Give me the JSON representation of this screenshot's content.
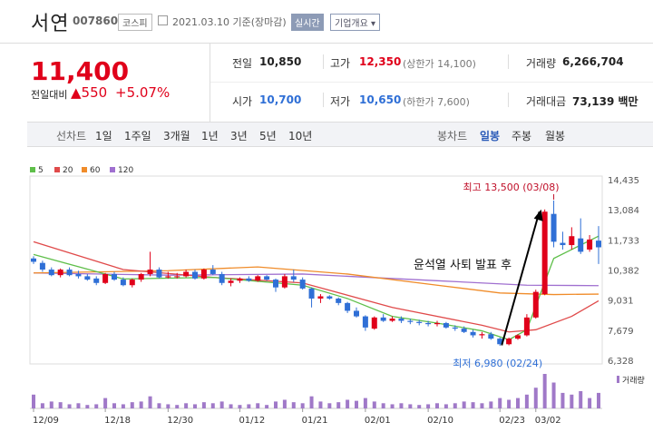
{
  "header": {
    "name": "서연",
    "code": "007860",
    "market": "코스피",
    "date_text": "2021.03.10 기준(장마감)",
    "realtime_label": "실시간",
    "corp_label": "기업개요 ▾"
  },
  "quote": {
    "price": "11,400",
    "change_label": "전일대비",
    "change": "▲550",
    "change_pct": "+5.07%"
  },
  "stats": {
    "prev_label": "전일",
    "prev": "10,850",
    "high_label": "고가",
    "high": "12,350",
    "high_limit": "(상한가 14,100)",
    "volume_label": "거래량",
    "volume": "6,266,704",
    "open_label": "시가",
    "open": "10,700",
    "low_label": "저가",
    "low": "10,650",
    "low_limit": "(하한가 7,600)",
    "amount_label": "거래대금",
    "amount": "73,139 백만"
  },
  "tabs": {
    "line_label": "선차트",
    "periods": [
      "1일",
      "1주일",
      "3개월",
      "1년",
      "3년",
      "5년",
      "10년"
    ],
    "candle_label": "봉차트",
    "candle_periods": [
      "일봉",
      "주봉",
      "월봉"
    ],
    "selected": "일봉"
  },
  "colors": {
    "up": "#e0001a",
    "down": "#2f6fd6",
    "ma5": "#5fbf4a",
    "ma20": "#e04a4a",
    "ma60": "#f08c2a",
    "ma120": "#a070d0"
  },
  "chart_data": {
    "type": "candlestick",
    "legend": [
      {
        "name": "5",
        "color": "#5fbf4a"
      },
      {
        "name": "20",
        "color": "#e04a4a"
      },
      {
        "name": "60",
        "color": "#f08c2a"
      },
      {
        "name": "120",
        "color": "#a070d0"
      }
    ],
    "y_ticks": [
      "14,435",
      "13,084",
      "11,733",
      "10,382",
      "9,031",
      "7,679",
      "6,328"
    ],
    "y_range": [
      6328,
      14435
    ],
    "x_labels": [
      "12/09",
      "12/18",
      "12/30",
      "01/12",
      "01/21",
      "02/01",
      "02/10",
      "02/23",
      "03/02"
    ],
    "x_label_index": [
      0,
      8,
      15,
      23,
      30,
      37,
      44,
      52,
      56
    ],
    "ohlc": [
      [
        10900,
        11000,
        10650,
        10750
      ],
      [
        10700,
        10800,
        10300,
        10400
      ],
      [
        10400,
        10500,
        10100,
        10150
      ],
      [
        10150,
        10450,
        10050,
        10400
      ],
      [
        10400,
        10500,
        10100,
        10150
      ],
      [
        10200,
        10350,
        10000,
        10100
      ],
      [
        10100,
        10200,
        9900,
        9950
      ],
      [
        10000,
        10100,
        9700,
        9800
      ],
      [
        9800,
        10250,
        9750,
        10200
      ],
      [
        10200,
        10300,
        9900,
        9950
      ],
      [
        9950,
        10050,
        9650,
        9700
      ],
      [
        9700,
        10000,
        9600,
        9950
      ],
      [
        9950,
        10250,
        9850,
        10200
      ],
      [
        10200,
        11200,
        10100,
        10400
      ],
      [
        10400,
        10500,
        10000,
        10050
      ],
      [
        10050,
        10300,
        10000,
        10100
      ],
      [
        10100,
        10250,
        10000,
        10100
      ],
      [
        10100,
        10400,
        10050,
        10300
      ],
      [
        10300,
        10400,
        9950,
        10000
      ],
      [
        10000,
        10450,
        9950,
        10400
      ],
      [
        10400,
        10600,
        10150,
        10200
      ],
      [
        10200,
        10300,
        9700,
        9800
      ],
      [
        9800,
        10000,
        9650,
        9900
      ],
      [
        9900,
        10050,
        9800,
        10000
      ],
      [
        10000,
        10100,
        9850,
        9900
      ],
      [
        9900,
        10150,
        9850,
        10100
      ],
      [
        10100,
        10150,
        9900,
        9950
      ],
      [
        9950,
        10000,
        9400,
        9600
      ],
      [
        9600,
        10200,
        9550,
        10100
      ],
      [
        10100,
        10400,
        9850,
        9950
      ],
      [
        9950,
        10050,
        9500,
        9550
      ],
      [
        9550,
        9600,
        8700,
        9100
      ],
      [
        9100,
        9300,
        8900,
        9200
      ],
      [
        9200,
        9250,
        9050,
        9100
      ],
      [
        9100,
        9150,
        8800,
        8900
      ],
      [
        8900,
        8950,
        8450,
        8550
      ],
      [
        8550,
        8700,
        8250,
        8300
      ],
      [
        8300,
        8350,
        7650,
        7800
      ],
      [
        7750,
        8300,
        7700,
        8250
      ],
      [
        8250,
        8400,
        8050,
        8100
      ],
      [
        8100,
        8300,
        8050,
        8200
      ],
      [
        8200,
        8300,
        8000,
        8100
      ],
      [
        8100,
        8200,
        7950,
        8050
      ],
      [
        8050,
        8150,
        7900,
        8000
      ],
      [
        8000,
        8100,
        7850,
        7950
      ],
      [
        7950,
        8100,
        7850,
        8000
      ],
      [
        8000,
        8050,
        7750,
        7800
      ],
      [
        7800,
        7900,
        7650,
        7750
      ],
      [
        7750,
        7850,
        7550,
        7600
      ],
      [
        7600,
        7700,
        7350,
        7450
      ],
      [
        7450,
        7600,
        7300,
        7500
      ],
      [
        7500,
        7600,
        7250,
        7300
      ],
      [
        7300,
        7350,
        6980,
        7050
      ],
      [
        7050,
        7350,
        7000,
        7300
      ],
      [
        7300,
        7500,
        7250,
        7450
      ],
      [
        7450,
        8400,
        7400,
        8250
      ],
      [
        8250,
        9500,
        8200,
        9400
      ],
      [
        9300,
        13100,
        9250,
        13000
      ],
      [
        12900,
        13500,
        11400,
        11650
      ],
      [
        11600,
        12100,
        11300,
        11500
      ],
      [
        11500,
        12300,
        11300,
        11900
      ],
      [
        11800,
        12700,
        11100,
        11200
      ],
      [
        11300,
        11950,
        11200,
        11750
      ],
      [
        11700,
        12350,
        10650,
        11400
      ]
    ],
    "ma5": [
      [
        0,
        11080
      ],
      [
        10,
        9980
      ],
      [
        20,
        10050
      ],
      [
        30,
        9700
      ],
      [
        35,
        9100
      ],
      [
        40,
        8300
      ],
      [
        45,
        8000
      ],
      [
        50,
        7650
      ],
      [
        53,
        7250
      ],
      [
        55,
        7700
      ],
      [
        58,
        10900
      ],
      [
        60,
        11300
      ],
      [
        63,
        11900
      ]
    ],
    "ma20": [
      [
        0,
        11650
      ],
      [
        10,
        10400
      ],
      [
        20,
        10050
      ],
      [
        30,
        9800
      ],
      [
        40,
        8700
      ],
      [
        50,
        7900
      ],
      [
        53,
        7600
      ],
      [
        56,
        7700
      ],
      [
        60,
        8300
      ],
      [
        63,
        9000
      ]
    ],
    "ma60": [
      [
        0,
        10250
      ],
      [
        15,
        10350
      ],
      [
        25,
        10520
      ],
      [
        35,
        10200
      ],
      [
        45,
        9700
      ],
      [
        52,
        9350
      ],
      [
        58,
        9280
      ],
      [
        63,
        9300
      ]
    ],
    "ma120": [
      [
        0,
        10250
      ],
      [
        15,
        10150
      ],
      [
        30,
        10200
      ],
      [
        45,
        9900
      ],
      [
        55,
        9700
      ],
      [
        63,
        9680
      ]
    ],
    "volume": [
      40,
      15,
      20,
      18,
      12,
      15,
      10,
      12,
      30,
      15,
      12,
      18,
      20,
      35,
      15,
      12,
      10,
      15,
      12,
      18,
      15,
      20,
      12,
      10,
      12,
      15,
      10,
      20,
      25,
      18,
      15,
      35,
      20,
      15,
      18,
      25,
      22,
      30,
      20,
      15,
      12,
      15,
      12,
      10,
      12,
      15,
      12,
      15,
      20,
      18,
      15,
      20,
      30,
      25,
      30,
      40,
      60,
      100,
      75,
      45,
      40,
      50,
      30,
      45
    ],
    "annotations": {
      "high": "최고 13,500 (03/08)",
      "low": "최저 6,980 (02/24)",
      "note": "윤석열 사퇴 발표 후"
    },
    "volume_label": "거래량"
  }
}
